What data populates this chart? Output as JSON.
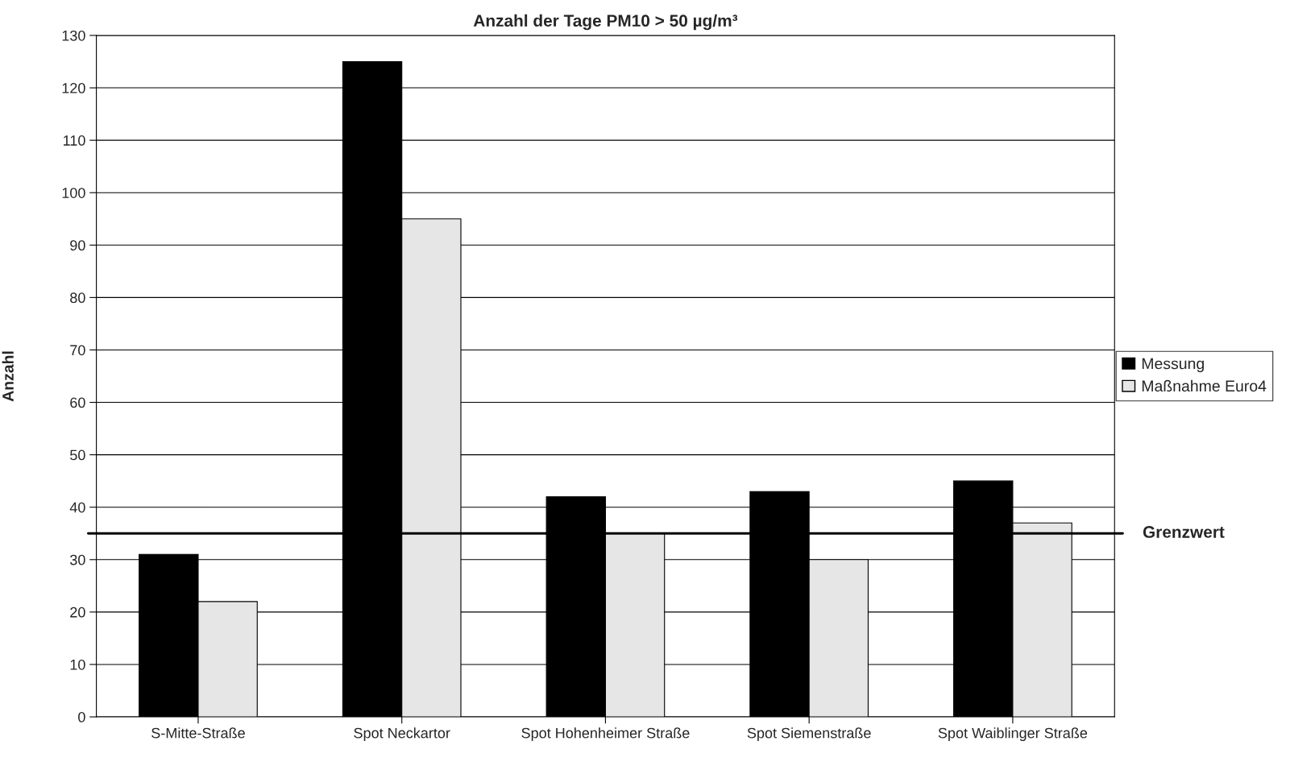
{
  "chart_data": {
    "type": "bar",
    "title": "Anzahl der Tage PM10 > 50 µg/m³",
    "ylabel": "Anzahl",
    "categories": [
      "S-Mitte-Straße",
      "Spot Neckartor",
      "Spot Hohenheimer Straße",
      "Spot Siemenstraße",
      "Spot Waiblinger Straße"
    ],
    "series": [
      {
        "name": "Messung",
        "color": "#000000",
        "values": [
          31,
          125,
          42,
          43,
          45
        ]
      },
      {
        "name": "Maßnahme Euro4",
        "color": "#e6e6e6",
        "values": [
          22,
          95,
          35,
          30,
          37
        ]
      }
    ],
    "ylim": [
      0,
      130
    ],
    "yticks": [
      0,
      10,
      20,
      30,
      40,
      50,
      60,
      70,
      80,
      90,
      100,
      110,
      120,
      130
    ],
    "ref_lines": [
      {
        "axis": "y",
        "value": 35,
        "label": "Grenzwert",
        "color": "#000000"
      }
    ],
    "grid": "y",
    "legend": "right"
  }
}
